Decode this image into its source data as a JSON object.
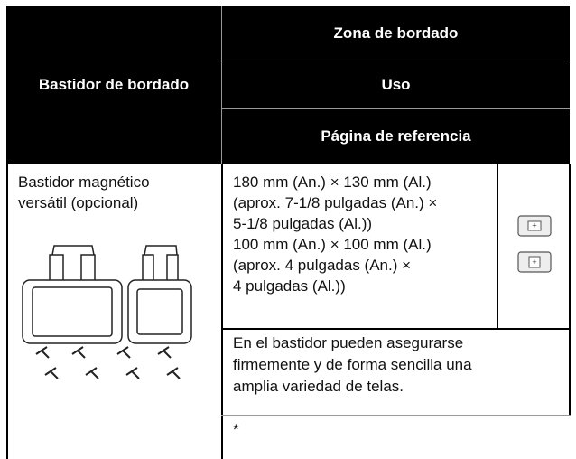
{
  "table": {
    "header": {
      "frame": "Bastidor de bordado",
      "area": "Zona de bordado",
      "use": "Uso",
      "reference": "Página de referencia"
    },
    "rows": [
      {
        "frame": [
          "Bastidor magnético",
          "versátil (opcional)"
        ],
        "area": [
          "180 mm (An.) × 130 mm (Al.)",
          "(aprox. 7-1/8 pulgadas (An.) ×",
          "5-1/8 pulgadas (Al.))",
          "100 mm (An.) × 100 mm (Al.)",
          "(aprox. 4 pulgadas (An.) ×",
          "4 pulgadas (Al.))"
        ],
        "use": [
          "En el bastidor pueden asegurarse",
          "firmemente y de forma sencilla una",
          "amplia variedad de telas."
        ],
        "reference": "*"
      }
    ]
  }
}
